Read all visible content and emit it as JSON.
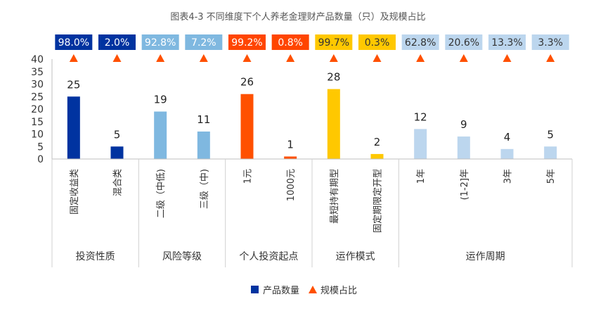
{
  "chart_data": {
    "type": "bar",
    "title": "图表4-3 不同维度下个人养老金理财产品数量（只）及规模占比",
    "ylim": [
      0,
      40
    ],
    "yticks": [
      0,
      5,
      10,
      15,
      20,
      25,
      30,
      35,
      40
    ],
    "categories": [
      "固定收益类",
      "混合类",
      "二级（中低)",
      "三级（中)",
      "1元",
      "1000元",
      "最短持有期型",
      "固定期限定开型",
      "1年",
      "(1-2]年",
      "3年",
      "5年"
    ],
    "series": [
      {
        "name": "产品数量",
        "values": [
          25,
          5,
          19,
          11,
          26,
          1,
          28,
          2,
          12,
          9,
          4,
          5
        ]
      },
      {
        "name": "规模占比",
        "values": [
          "98.0%",
          "2.0%",
          "92.8%",
          "7.2%",
          "99.2%",
          "0.8%",
          "99.7%",
          "0.3%",
          "62.8%",
          "20.6%",
          "13.3%",
          "3.3%"
        ]
      }
    ],
    "groups": [
      {
        "label": "投资性质",
        "count": 2,
        "bar_color": "#0033a0",
        "tag_color": "#0033a0",
        "tag_text_color": "#ffffff"
      },
      {
        "label": "风险等级",
        "count": 2,
        "bar_color": "#7fb8e0",
        "tag_color": "#7fb8e0",
        "tag_text_color": "#ffffff"
      },
      {
        "label": "个人投资起点",
        "count": 2,
        "bar_color": "#ff5000",
        "tag_color": "#ff4500",
        "tag_text_color": "#ffffff"
      },
      {
        "label": "运作模式",
        "count": 2,
        "bar_color": "#ffc800",
        "tag_color": "#ffc800",
        "tag_text_color": "#333333"
      },
      {
        "label": "运作周期",
        "count": 4,
        "bar_color": "#bcd6ee",
        "tag_color": "#bcd6ee",
        "tag_text_color": "#333333"
      }
    ],
    "marker_color": "#ff5000",
    "legend": {
      "placement": "bottom",
      "items": [
        {
          "label": "产品数量",
          "color": "#0033a0",
          "shape": "square"
        },
        {
          "label": "规模占比",
          "color": "#ff5000",
          "shape": "triangle"
        }
      ]
    }
  }
}
